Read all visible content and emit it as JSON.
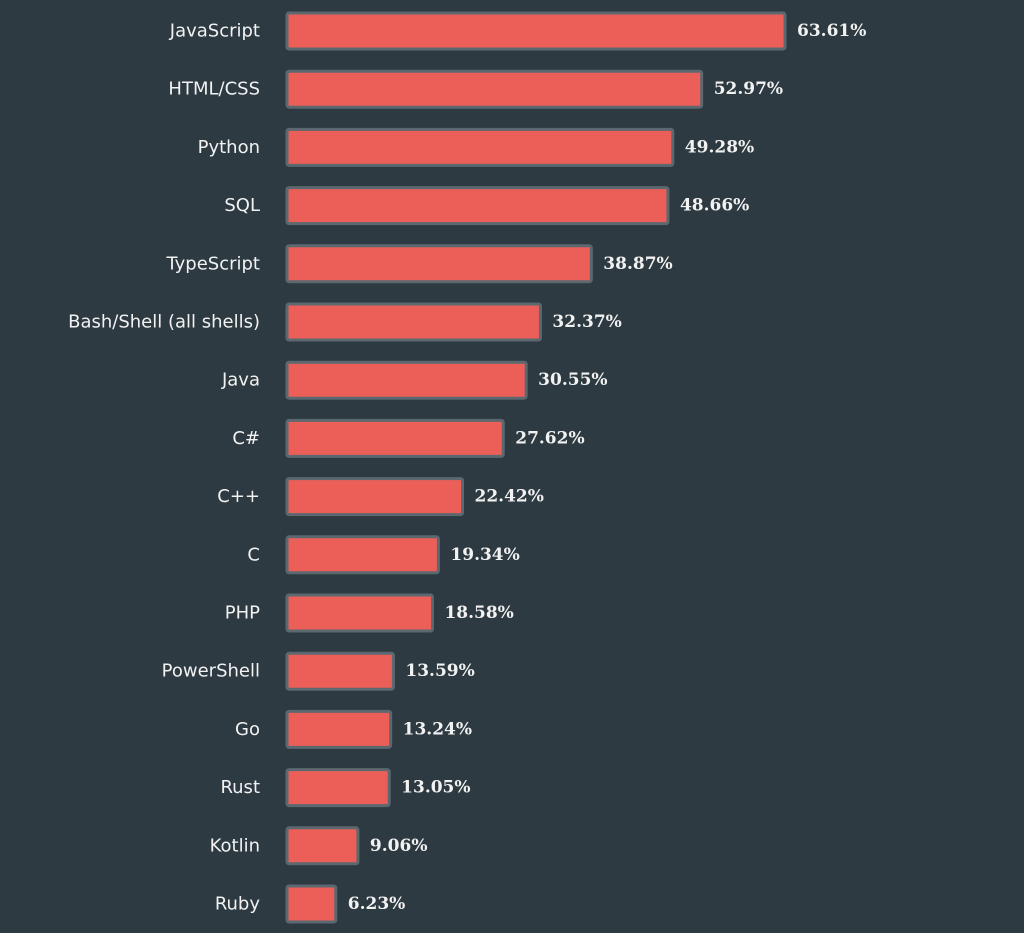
{
  "chart_data": {
    "type": "bar",
    "orientation": "horizontal",
    "categories": [
      "JavaScript",
      "HTML/CSS",
      "Python",
      "SQL",
      "TypeScript",
      "Bash/Shell (all shells)",
      "Java",
      "C#",
      "C++",
      "C",
      "PHP",
      "PowerShell",
      "Go",
      "Rust",
      "Kotlin",
      "Ruby"
    ],
    "values": [
      63.61,
      52.97,
      49.28,
      48.66,
      38.87,
      32.37,
      30.55,
      27.62,
      22.42,
      19.34,
      18.58,
      13.59,
      13.24,
      13.05,
      9.06,
      6.23
    ],
    "value_labels": [
      "63.61%",
      "52.97%",
      "49.28%",
      "48.66%",
      "38.87%",
      "32.37%",
      "30.55%",
      "27.62%",
      "22.42%",
      "19.34%",
      "18.58%",
      "13.59%",
      "13.24%",
      "13.05%",
      "9.06%",
      "6.23%"
    ],
    "xlim": [
      0,
      63.61
    ],
    "grid": false,
    "colors": {
      "background": "#2d3a41",
      "bar": "#ec5f59",
      "bar_outline": "#5b6870",
      "text": "#f2f2f2"
    }
  }
}
